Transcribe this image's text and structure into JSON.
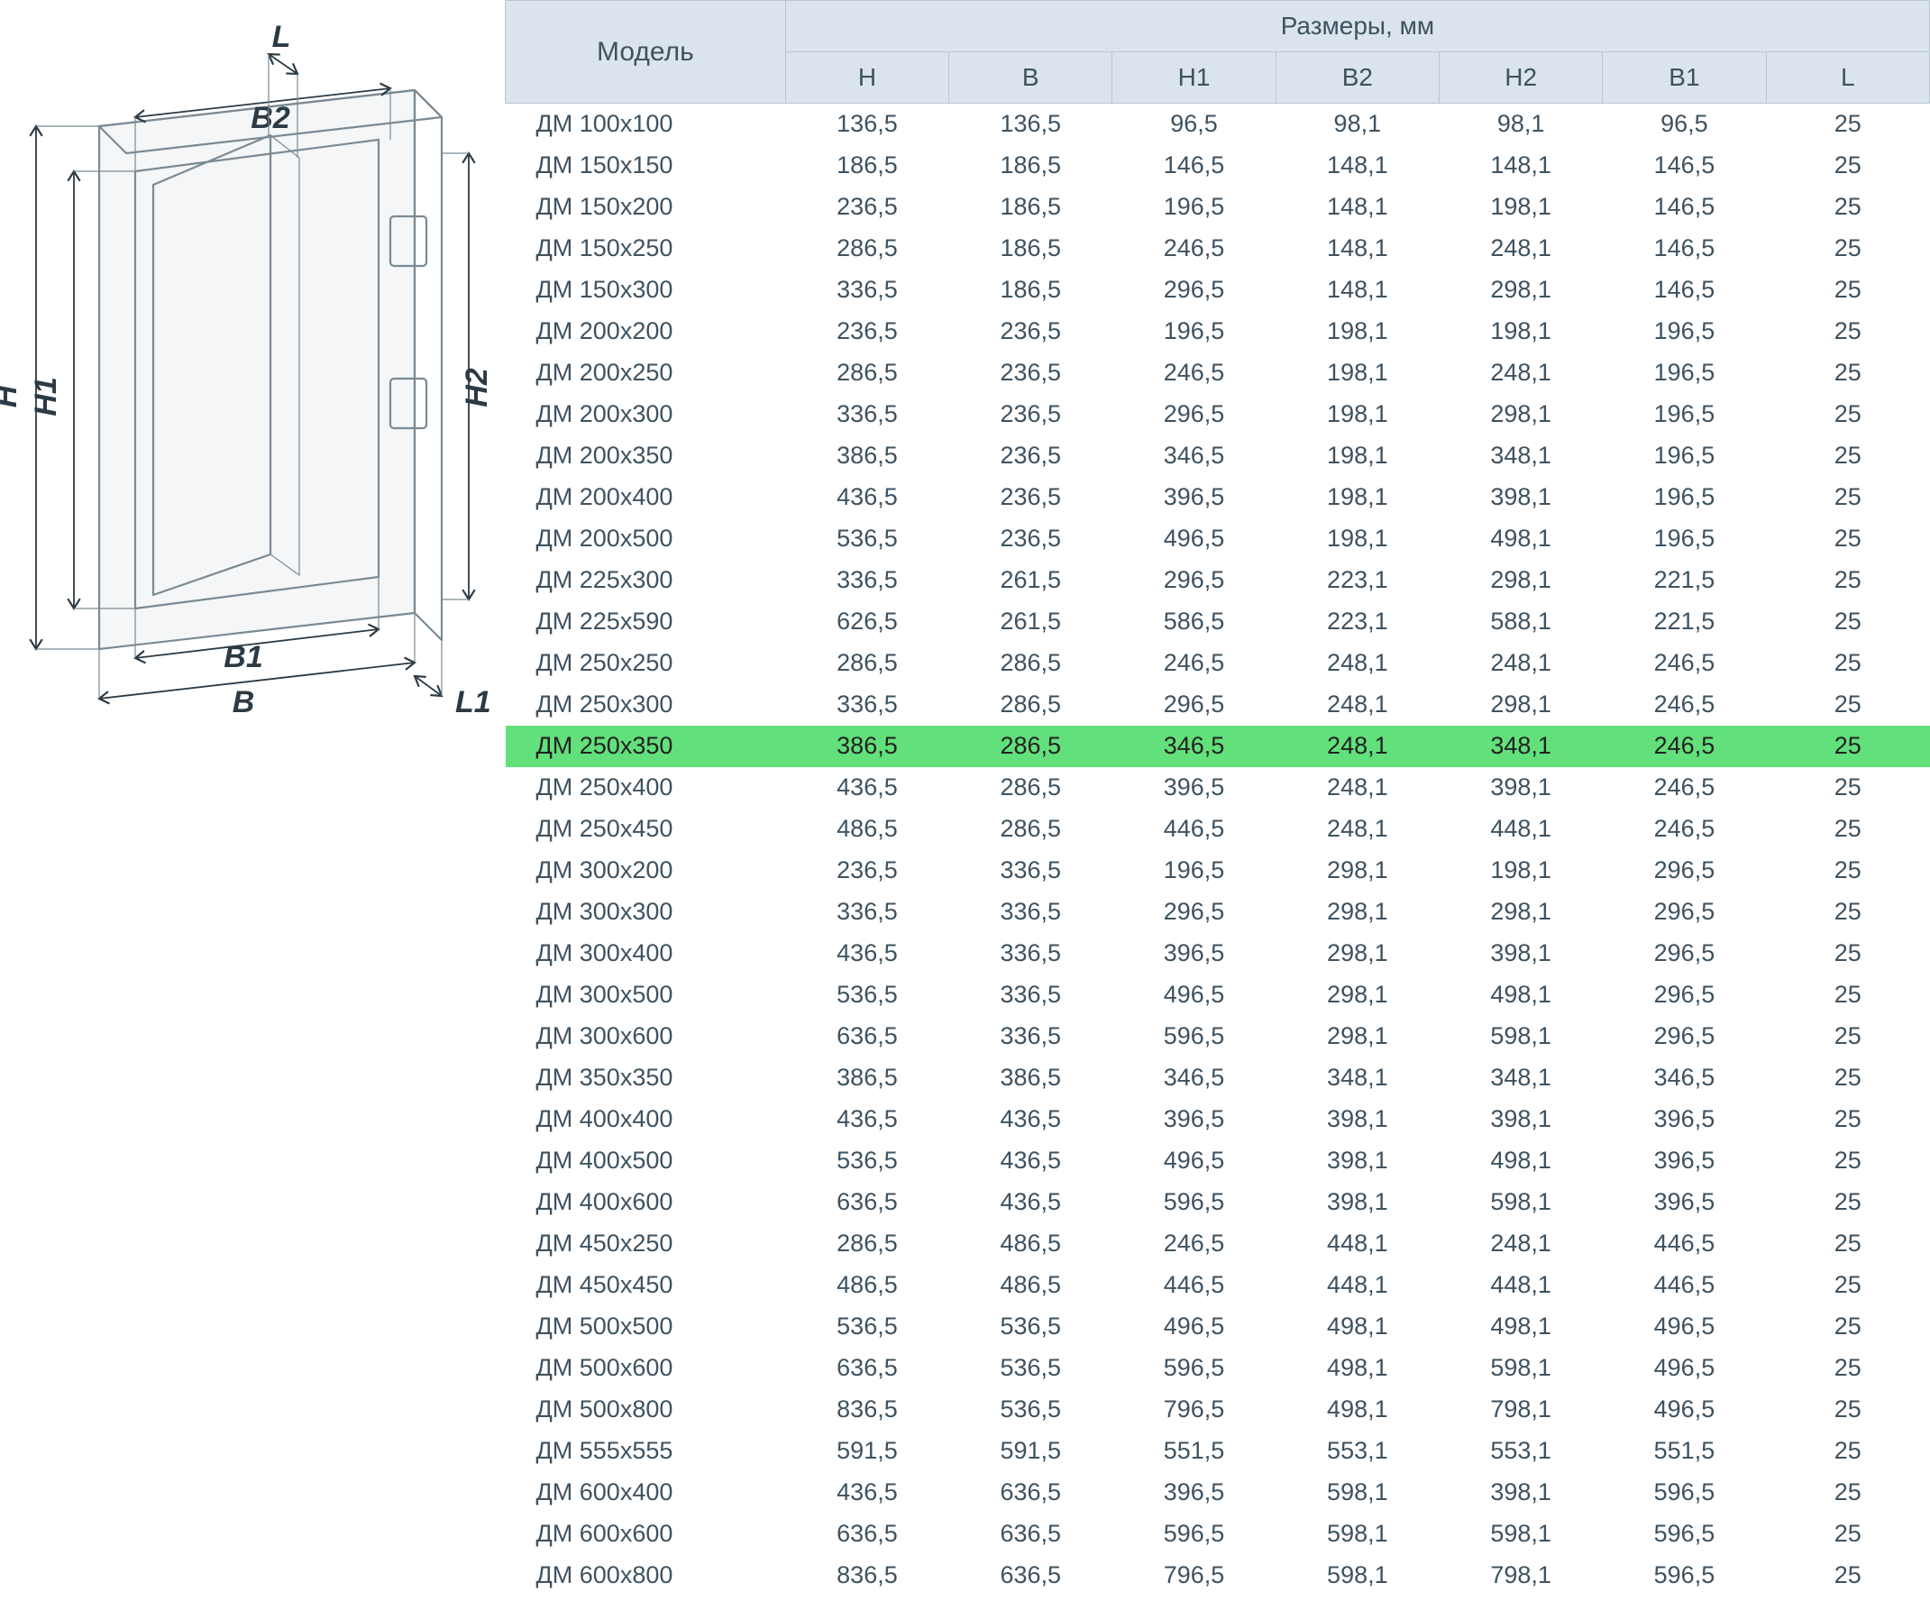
{
  "colors": {
    "dim_line": "#2b3a44",
    "outline": "#7a8a94",
    "th_bg": "#dbe4ec",
    "th_border": "#b9c7d3",
    "th_text": "#3e5260",
    "cell_text": "#3e5260",
    "highlight_bg": "#62e07b",
    "highlight_text": "#222222",
    "background": "#ffffff"
  },
  "diagram": {
    "labels": {
      "H": "H",
      "H1": "H1",
      "H2": "H2",
      "B": "B",
      "B1": "B1",
      "B2": "B2",
      "L": "L",
      "L1": "L1"
    },
    "label_fontsize": 34
  },
  "table": {
    "header_group_label": "Размеры, мм",
    "model_header": "Модель",
    "columns": [
      "H",
      "B",
      "H1",
      "B2",
      "H2",
      "B1",
      "L"
    ],
    "th_fontsize": 28,
    "th_model_fontsize": 30,
    "cell_fontsize": 27,
    "highlight_row_index": 15,
    "rows": [
      {
        "model": "ДМ 100х100",
        "v": [
          "136,5",
          "136,5",
          "96,5",
          "98,1",
          "98,1",
          "96,5",
          "25"
        ]
      },
      {
        "model": "ДМ 150х150",
        "v": [
          "186,5",
          "186,5",
          "146,5",
          "148,1",
          "148,1",
          "146,5",
          "25"
        ]
      },
      {
        "model": "ДМ 150х200",
        "v": [
          "236,5",
          "186,5",
          "196,5",
          "148,1",
          "198,1",
          "146,5",
          "25"
        ]
      },
      {
        "model": "ДМ 150х250",
        "v": [
          "286,5",
          "186,5",
          "246,5",
          "148,1",
          "248,1",
          "146,5",
          "25"
        ]
      },
      {
        "model": "ДМ 150х300",
        "v": [
          "336,5",
          "186,5",
          "296,5",
          "148,1",
          "298,1",
          "146,5",
          "25"
        ]
      },
      {
        "model": "ДМ 200х200",
        "v": [
          "236,5",
          "236,5",
          "196,5",
          "198,1",
          "198,1",
          "196,5",
          "25"
        ]
      },
      {
        "model": "ДМ 200х250",
        "v": [
          "286,5",
          "236,5",
          "246,5",
          "198,1",
          "248,1",
          "196,5",
          "25"
        ]
      },
      {
        "model": "ДМ 200х300",
        "v": [
          "336,5",
          "236,5",
          "296,5",
          "198,1",
          "298,1",
          "196,5",
          "25"
        ]
      },
      {
        "model": "ДМ 200х350",
        "v": [
          "386,5",
          "236,5",
          "346,5",
          "198,1",
          "348,1",
          "196,5",
          "25"
        ]
      },
      {
        "model": "ДМ 200х400",
        "v": [
          "436,5",
          "236,5",
          "396,5",
          "198,1",
          "398,1",
          "196,5",
          "25"
        ]
      },
      {
        "model": "ДМ 200х500",
        "v": [
          "536,5",
          "236,5",
          "496,5",
          "198,1",
          "498,1",
          "196,5",
          "25"
        ]
      },
      {
        "model": "ДМ 225х300",
        "v": [
          "336,5",
          "261,5",
          "296,5",
          "223,1",
          "298,1",
          "221,5",
          "25"
        ]
      },
      {
        "model": "ДМ 225х590",
        "v": [
          "626,5",
          "261,5",
          "586,5",
          "223,1",
          "588,1",
          "221,5",
          "25"
        ]
      },
      {
        "model": "ДМ 250х250",
        "v": [
          "286,5",
          "286,5",
          "246,5",
          "248,1",
          "248,1",
          "246,5",
          "25"
        ]
      },
      {
        "model": "ДМ 250х300",
        "v": [
          "336,5",
          "286,5",
          "296,5",
          "248,1",
          "298,1",
          "246,5",
          "25"
        ]
      },
      {
        "model": "ДМ 250х350",
        "v": [
          "386,5",
          "286,5",
          "346,5",
          "248,1",
          "348,1",
          "246,5",
          "25"
        ]
      },
      {
        "model": "ДМ 250х400",
        "v": [
          "436,5",
          "286,5",
          "396,5",
          "248,1",
          "398,1",
          "246,5",
          "25"
        ]
      },
      {
        "model": "ДМ 250х450",
        "v": [
          "486,5",
          "286,5",
          "446,5",
          "248,1",
          "448,1",
          "246,5",
          "25"
        ]
      },
      {
        "model": "ДМ 300х200",
        "v": [
          "236,5",
          "336,5",
          "196,5",
          "298,1",
          "198,1",
          "296,5",
          "25"
        ]
      },
      {
        "model": "ДМ 300х300",
        "v": [
          "336,5",
          "336,5",
          "296,5",
          "298,1",
          "298,1",
          "296,5",
          "25"
        ]
      },
      {
        "model": "ДМ 300х400",
        "v": [
          "436,5",
          "336,5",
          "396,5",
          "298,1",
          "398,1",
          "296,5",
          "25"
        ]
      },
      {
        "model": "ДМ 300х500",
        "v": [
          "536,5",
          "336,5",
          "496,5",
          "298,1",
          "498,1",
          "296,5",
          "25"
        ]
      },
      {
        "model": "ДМ 300х600",
        "v": [
          "636,5",
          "336,5",
          "596,5",
          "298,1",
          "598,1",
          "296,5",
          "25"
        ]
      },
      {
        "model": "ДМ 350х350",
        "v": [
          "386,5",
          "386,5",
          "346,5",
          "348,1",
          "348,1",
          "346,5",
          "25"
        ]
      },
      {
        "model": "ДМ 400х400",
        "v": [
          "436,5",
          "436,5",
          "396,5",
          "398,1",
          "398,1",
          "396,5",
          "25"
        ]
      },
      {
        "model": "ДМ 400х500",
        "v": [
          "536,5",
          "436,5",
          "496,5",
          "398,1",
          "498,1",
          "396,5",
          "25"
        ]
      },
      {
        "model": "ДМ 400х600",
        "v": [
          "636,5",
          "436,5",
          "596,5",
          "398,1",
          "598,1",
          "396,5",
          "25"
        ]
      },
      {
        "model": "ДМ 450х250",
        "v": [
          "286,5",
          "486,5",
          "246,5",
          "448,1",
          "248,1",
          "446,5",
          "25"
        ]
      },
      {
        "model": "ДМ 450х450",
        "v": [
          "486,5",
          "486,5",
          "446,5",
          "448,1",
          "448,1",
          "446,5",
          "25"
        ]
      },
      {
        "model": "ДМ 500х500",
        "v": [
          "536,5",
          "536,5",
          "496,5",
          "498,1",
          "498,1",
          "496,5",
          "25"
        ]
      },
      {
        "model": "ДМ 500х600",
        "v": [
          "636,5",
          "536,5",
          "596,5",
          "498,1",
          "598,1",
          "496,5",
          "25"
        ]
      },
      {
        "model": "ДМ 500х800",
        "v": [
          "836,5",
          "536,5",
          "796,5",
          "498,1",
          "798,1",
          "496,5",
          "25"
        ]
      },
      {
        "model": "ДМ 555х555",
        "v": [
          "591,5",
          "591,5",
          "551,5",
          "553,1",
          "553,1",
          "551,5",
          "25"
        ]
      },
      {
        "model": "ДМ 600х400",
        "v": [
          "436,5",
          "636,5",
          "396,5",
          "598,1",
          "398,1",
          "596,5",
          "25"
        ]
      },
      {
        "model": "ДМ 600х600",
        "v": [
          "636,5",
          "636,5",
          "596,5",
          "598,1",
          "598,1",
          "596,5",
          "25"
        ]
      },
      {
        "model": "ДМ 600х800",
        "v": [
          "836,5",
          "636,5",
          "796,5",
          "598,1",
          "798,1",
          "596,5",
          "25"
        ]
      }
    ]
  }
}
